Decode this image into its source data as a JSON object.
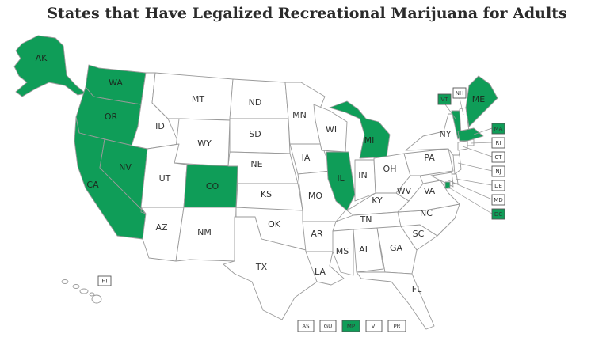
{
  "title": "States that Have Legalized Recreational Marijuana for Adults",
  "colors": {
    "legal": "#0f9d58",
    "not_legal": "#ffffff",
    "border": "#9a9a9a"
  },
  "states": {
    "AK": {
      "label": "AK",
      "legal": true
    },
    "WA": {
      "label": "WA",
      "legal": true
    },
    "OR": {
      "label": "OR",
      "legal": true
    },
    "CA": {
      "label": "CA",
      "legal": true
    },
    "NV": {
      "label": "NV",
      "legal": true
    },
    "ID": {
      "label": "ID",
      "legal": false
    },
    "MT": {
      "label": "MT",
      "legal": false
    },
    "WY": {
      "label": "WY",
      "legal": false
    },
    "UT": {
      "label": "UT",
      "legal": false
    },
    "CO": {
      "label": "CO",
      "legal": true
    },
    "AZ": {
      "label": "AZ",
      "legal": false
    },
    "NM": {
      "label": "NM",
      "legal": false
    },
    "ND": {
      "label": "ND",
      "legal": false
    },
    "SD": {
      "label": "SD",
      "legal": false
    },
    "NE": {
      "label": "NE",
      "legal": false
    },
    "KS": {
      "label": "KS",
      "legal": false
    },
    "OK": {
      "label": "OK",
      "legal": false
    },
    "TX": {
      "label": "TX",
      "legal": false
    },
    "MN": {
      "label": "MN",
      "legal": false
    },
    "IA": {
      "label": "IA",
      "legal": false
    },
    "MO": {
      "label": "MO",
      "legal": false
    },
    "AR": {
      "label": "AR",
      "legal": false
    },
    "LA": {
      "label": "LA",
      "legal": false
    },
    "WI": {
      "label": "WI",
      "legal": false
    },
    "IL": {
      "label": "IL",
      "legal": true
    },
    "MI": {
      "label": "MI",
      "legal": true
    },
    "IN": {
      "label": "IN",
      "legal": false
    },
    "OH": {
      "label": "OH",
      "legal": false
    },
    "KY": {
      "label": "KY",
      "legal": false
    },
    "TN": {
      "label": "TN",
      "legal": false
    },
    "MS": {
      "label": "MS",
      "legal": false
    },
    "AL": {
      "label": "AL",
      "legal": false
    },
    "GA": {
      "label": "GA",
      "legal": false
    },
    "FL": {
      "label": "FL",
      "legal": false
    },
    "SC": {
      "label": "SC",
      "legal": false
    },
    "NC": {
      "label": "NC",
      "legal": false
    },
    "VA": {
      "label": "VA",
      "legal": false
    },
    "WV": {
      "label": "WV",
      "legal": false
    },
    "PA": {
      "label": "PA",
      "legal": false
    },
    "NY": {
      "label": "NY",
      "legal": false
    },
    "VT": {
      "label": "VT",
      "legal": true
    },
    "NH": {
      "label": "NH",
      "legal": false
    },
    "ME": {
      "label": "ME",
      "legal": true
    },
    "MA": {
      "label": "MA",
      "legal": true
    },
    "RI": {
      "label": "RI",
      "legal": false
    },
    "CT": {
      "label": "CT",
      "legal": false
    },
    "NJ": {
      "label": "NJ",
      "legal": false
    },
    "DE": {
      "label": "DE",
      "legal": false
    },
    "MD": {
      "label": "MD",
      "legal": false
    },
    "DC": {
      "label": "DC",
      "legal": true
    },
    "HI": {
      "label": "HI",
      "legal": false
    }
  },
  "territories": [
    {
      "label": "AS",
      "legal": false
    },
    {
      "label": "GU",
      "legal": false
    },
    {
      "label": "MP",
      "legal": true
    },
    {
      "label": "VI",
      "legal": false
    },
    {
      "label": "PR",
      "legal": false
    }
  ]
}
